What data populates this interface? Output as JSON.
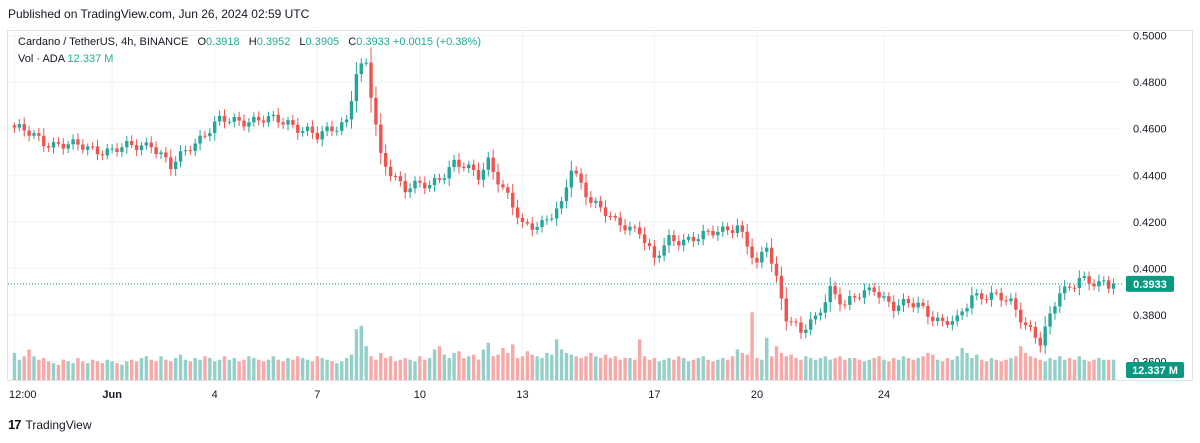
{
  "header": {
    "published": "Published on TradingView.com, Jun 26, 2024 02:59 UTC"
  },
  "legend": {
    "symbol": "Cardano / TetherUS, 4h, BINANCE",
    "open_label": "O",
    "open": "0.3918",
    "high_label": "H",
    "high": "0.3952",
    "low_label": "L",
    "low": "0.3905",
    "close_label": "C",
    "close": "0.3933",
    "change": "+0.0015 (+0.38%)",
    "vol_label": "Vol · ADA",
    "vol": "12.337 M"
  },
  "price_axis": {
    "ticks": [
      "0.5000",
      "0.4800",
      "0.4600",
      "0.4400",
      "0.4200",
      "0.4000",
      "0.3800",
      "0.3600"
    ],
    "last_price": "0.3933",
    "volume_badge": "12.337 M"
  },
  "time_axis": {
    "ticks": [
      "12:00",
      "Jun",
      "4",
      "7",
      "10",
      "13",
      "17",
      "20",
      "24"
    ]
  },
  "footer": {
    "brand": "TradingView",
    "logo": "17"
  },
  "colors": {
    "up": "#26a69a",
    "down": "#ef5350",
    "up_vol": "#94d0c9",
    "down_vol": "#f7a9a7",
    "badge": "#089981"
  },
  "chart_data": {
    "type": "candlestick",
    "title": "Cardano / TetherUS, 4h, BINANCE",
    "ylim": [
      0.352,
      0.502
    ],
    "xlabels": [
      "12:00",
      "Jun",
      "4",
      "7",
      "10",
      "13",
      "17",
      "20",
      "24"
    ],
    "last": 0.3933,
    "ohlc_anchors": [
      [
        0,
        0.4605
      ],
      [
        6,
        0.4545
      ],
      [
        12,
        0.4525
      ],
      [
        20,
        0.4505
      ],
      [
        28,
        0.454
      ],
      [
        32,
        0.443
      ],
      [
        36,
        0.453
      ],
      [
        42,
        0.463
      ],
      [
        48,
        0.464
      ],
      [
        56,
        0.463
      ],
      [
        60,
        0.459
      ],
      [
        62,
        0.456
      ],
      [
        68,
        0.464
      ],
      [
        70,
        0.484
      ],
      [
        72,
        0.487
      ],
      [
        75,
        0.448
      ],
      [
        80,
        0.434
      ],
      [
        85,
        0.436
      ],
      [
        90,
        0.445
      ],
      [
        95,
        0.44
      ],
      [
        97,
        0.447
      ],
      [
        100,
        0.434
      ],
      [
        104,
        0.418
      ],
      [
        108,
        0.42
      ],
      [
        112,
        0.426
      ],
      [
        114,
        0.443
      ],
      [
        118,
        0.43
      ],
      [
        123,
        0.419
      ],
      [
        128,
        0.417
      ],
      [
        131,
        0.403
      ],
      [
        134,
        0.412
      ],
      [
        142,
        0.414
      ],
      [
        148,
        0.419
      ],
      [
        150,
        0.41
      ],
      [
        152,
        0.4
      ],
      [
        154,
        0.41
      ],
      [
        156,
        0.396
      ],
      [
        158,
        0.38
      ],
      [
        161,
        0.372
      ],
      [
        164,
        0.378
      ],
      [
        167,
        0.392
      ],
      [
        170,
        0.384
      ],
      [
        176,
        0.392
      ],
      [
        180,
        0.383
      ],
      [
        185,
        0.385
      ],
      [
        190,
        0.376
      ],
      [
        193,
        0.377
      ],
      [
        196,
        0.389
      ],
      [
        200,
        0.388
      ],
      [
        204,
        0.385
      ],
      [
        208,
        0.374
      ],
      [
        210,
        0.368
      ],
      [
        212,
        0.378
      ],
      [
        214,
        0.39
      ],
      [
        216,
        0.392
      ],
      [
        218,
        0.397
      ],
      [
        220,
        0.3933
      ]
    ],
    "volume_m": [
      16,
      12,
      14,
      18,
      14,
      12,
      13,
      11,
      10,
      9,
      12,
      11,
      10,
      13,
      11,
      10,
      12,
      11,
      10,
      12,
      11,
      10,
      9,
      11,
      12,
      11,
      13,
      14,
      12,
      11,
      14,
      12,
      11,
      13,
      15,
      12,
      11,
      13,
      12,
      14,
      13,
      11,
      12,
      14,
      12,
      13,
      11,
      12,
      14,
      13,
      12,
      11,
      12,
      14,
      12,
      11,
      13,
      12,
      14,
      13,
      12,
      11,
      14,
      13,
      12,
      11,
      10,
      11,
      13,
      15,
      30,
      32,
      20,
      14,
      12,
      16,
      13,
      14,
      11,
      12,
      13,
      12,
      11,
      14,
      12,
      13,
      18,
      20,
      15,
      13,
      16,
      17,
      13,
      14,
      15,
      12,
      18,
      22,
      14,
      15,
      19,
      16,
      21,
      13,
      14,
      17,
      15,
      14,
      13,
      16,
      15,
      24,
      18,
      16,
      15,
      14,
      13,
      14,
      16,
      14,
      13,
      15,
      13,
      14,
      12,
      13,
      13,
      12,
      24,
      14,
      12,
      13,
      11,
      12,
      13,
      12,
      14,
      13,
      11,
      12,
      13,
      14,
      12,
      11,
      12,
      13,
      12,
      14,
      18,
      16,
      15,
      40,
      13,
      12,
      25,
      14,
      20,
      16,
      14,
      15,
      13,
      12,
      14,
      13,
      12,
      13,
      14,
      12,
      13,
      14,
      12,
      13,
      13,
      12,
      11,
      12,
      13,
      14,
      12,
      11,
      13,
      12,
      14,
      13,
      12,
      13,
      14,
      16,
      15,
      12,
      11,
      13,
      12,
      14,
      19,
      16,
      13,
      15,
      12,
      11,
      13,
      12,
      11,
      12,
      13,
      14,
      20,
      16,
      14,
      13,
      12,
      11,
      13,
      12,
      14,
      12,
      13,
      12,
      14,
      12,
      11,
      12,
      13,
      12,
      12,
      12
    ],
    "volume_ylim": [
      0,
      65
    ]
  }
}
